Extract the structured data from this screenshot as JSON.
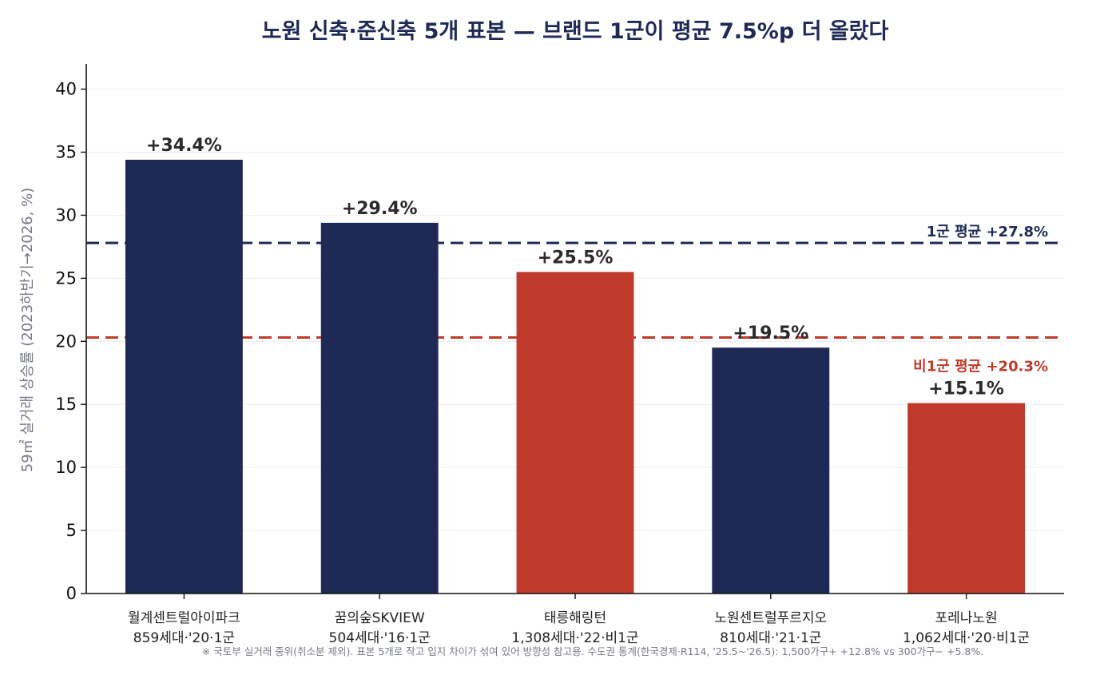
{
  "chart_data": {
    "type": "bar",
    "title": "노원 신축·준신축 5개 표본 — 브랜드 1군이 평균 7.5%p 더 올랐다",
    "ylabel": "59㎡ 실거래 상승률 (2023하반기→2026, %)",
    "xlabel": "",
    "ylim": [
      0,
      42
    ],
    "yticks": [
      0,
      5,
      10,
      15,
      20,
      25,
      30,
      35,
      40
    ],
    "grid": true,
    "categories": [
      {
        "name": "월계센트럴아이파크",
        "detail": "859세대·'20·1군"
      },
      {
        "name": "꿈의숲SKVIEW",
        "detail": "504세대·'16·1군"
      },
      {
        "name": "태릉해링턴",
        "detail": "1,308세대·'22·비1군"
      },
      {
        "name": "노원센트럴푸르지오",
        "detail": "810세대·'21·1군"
      },
      {
        "name": "포레나노원",
        "detail": "1,062세대·'20·비1군"
      }
    ],
    "values": [
      34.4,
      29.4,
      25.5,
      19.5,
      15.1
    ],
    "value_labels": [
      "+34.4%",
      "+29.4%",
      "+25.5%",
      "+19.5%",
      "+15.1%"
    ],
    "groups": [
      "1군",
      "1군",
      "비1군",
      "1군",
      "비1군"
    ],
    "colors": {
      "1군": "#1e2a55",
      "비1군": "#bf3a2b"
    },
    "reference_lines": [
      {
        "value": 27.8,
        "label": "1군 평균 +27.8%",
        "color": "#1e2a55"
      },
      {
        "value": 20.3,
        "label": "비1군 평균 +20.3%",
        "color": "#bf3a2b"
      }
    ],
    "footnote": "※ 국토부 실거래 중위(취소분 제외). 표본 5개로 작고 입지 차이가 섞여 있어 방향성 참고용. 수도권 통계(한국경제·R114, '25.5~'26.5): 1,500가구+ +12.8% vs 300가구− +5.8%."
  }
}
